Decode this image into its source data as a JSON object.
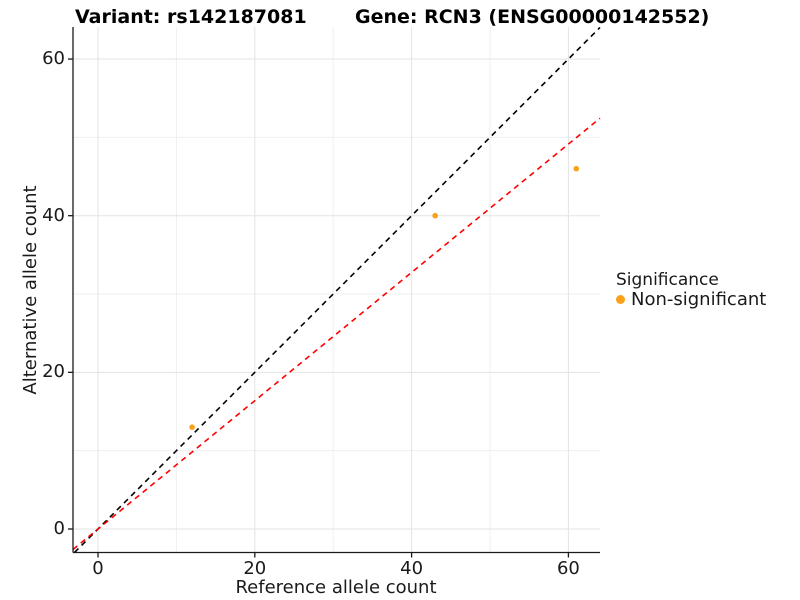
{
  "title_left": "Variant: rs142187081",
  "title_right": "Gene: RCN3 (ENSG00000142552)",
  "chart_data": {
    "type": "scatter",
    "xlabel": "Reference allele count",
    "ylabel": "Alternative allele count",
    "xlim": [
      -3.19,
      64.03
    ],
    "ylim": [
      -3.0,
      64.09
    ],
    "xticks": [
      0,
      20,
      40,
      60
    ],
    "yticks": [
      0,
      20,
      40,
      60
    ],
    "minor_xticks": [
      10,
      30,
      50
    ],
    "minor_yticks": [
      10,
      30,
      50
    ],
    "grid": "major+minor",
    "points": [
      {
        "x": 12,
        "y": 13,
        "series": "Non-significant"
      },
      {
        "x": 43,
        "y": 40,
        "series": "Non-significant"
      },
      {
        "x": 61,
        "y": 46,
        "series": "Non-significant"
      }
    ],
    "lines": [
      {
        "name": "identity",
        "slope": 1,
        "intercept": 0,
        "color": "#000000",
        "style": "dashed"
      },
      {
        "name": "regression",
        "slope": 0.819,
        "intercept": 0,
        "color": "#FF0000",
        "style": "dashed"
      }
    ],
    "legend": {
      "title": "Significance",
      "position": "right",
      "items": [
        {
          "label": "Non-significant",
          "color": "#FAA019"
        }
      ]
    },
    "point_color": "#FAA019",
    "colors": {
      "grid_major": "#E3E3E3",
      "grid_minor": "#EFEFEF",
      "axis_line": "#1A1A1A",
      "identity_line": "#000000",
      "regression_line": "#FF0000"
    }
  }
}
